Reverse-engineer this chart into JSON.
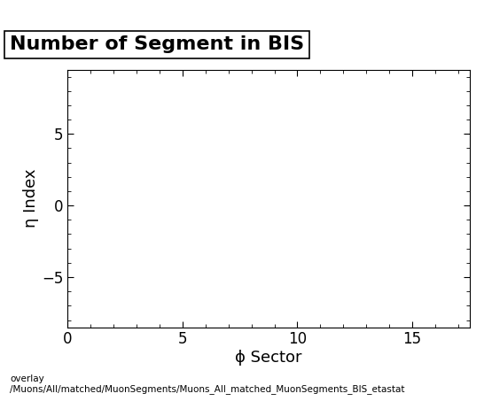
{
  "title": "Number of Segment in BIS",
  "xlabel": "ϕ Sector",
  "ylabel": "η Index",
  "xlim": [
    0,
    17.5
  ],
  "ylim": [
    -8.5,
    9.5
  ],
  "xticks": [
    0,
    5,
    10,
    15
  ],
  "yticks": [
    -5,
    0,
    5
  ],
  "background_color": "#ffffff",
  "plot_bg_color": "#ffffff",
  "title_fontsize": 16,
  "axis_label_fontsize": 13,
  "tick_fontsize": 12,
  "footer_line1": "overlay",
  "footer_line2": "/Muons/All/matched/MuonSegments/Muons_All_matched_MuonSegments_BIS_etastat",
  "footer_fontsize": 7.5
}
